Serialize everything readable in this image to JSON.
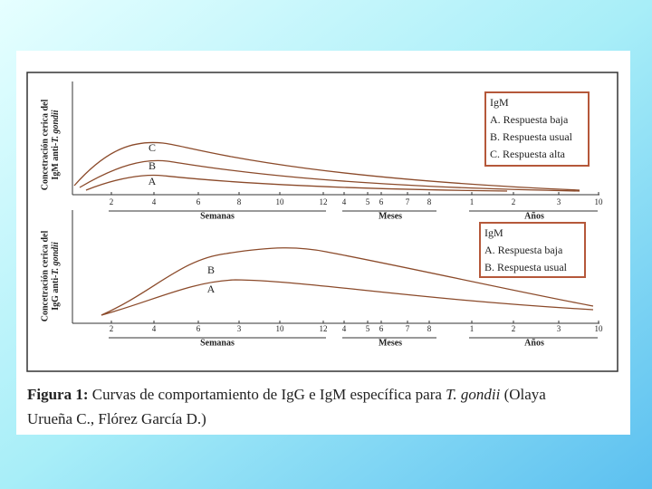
{
  "panels": [
    {
      "y_label": {
        "line1": "Concetración cerica del",
        "line2a": "IgM anti-",
        "line2b": "T. gondii"
      },
      "curve_labels": [
        "C",
        "B",
        "A"
      ],
      "legend": {
        "title": "IgM",
        "items": [
          "A. Respuesta baja",
          "B. Respuesta usual",
          "C. Respuesta alta"
        ]
      },
      "ticks": [
        "2",
        "4",
        "6",
        "8",
        "10",
        "12",
        "4",
        "5",
        "6",
        "7",
        "8",
        "1",
        "2",
        "3",
        "10"
      ],
      "groups": [
        "Semanas",
        "Meses",
        "Años"
      ]
    },
    {
      "y_label": {
        "line1": "Concetración cerica del",
        "line2a": "IgG anti-",
        "line2b": "T. gondii"
      },
      "curve_labels": [
        "B",
        "A"
      ],
      "legend": {
        "title": "IgM",
        "items": [
          "A. Respuesta baja",
          "B. Respuesta usual"
        ]
      },
      "ticks": [
        "2",
        "4",
        "6",
        "3",
        "10",
        "12",
        "4",
        "5",
        "6",
        "7",
        "8",
        "1",
        "2",
        "3",
        "10"
      ],
      "groups": [
        "Semanas",
        "Meses",
        "Años"
      ]
    }
  ],
  "caption": {
    "label": "Figura 1:",
    "text": "Curvas de comportamiento de IgG e IgM específica para",
    "italic": "T. gondii",
    "text2": "(Olaya",
    "line2": "Urueña C., Flórez García D.)"
  }
}
